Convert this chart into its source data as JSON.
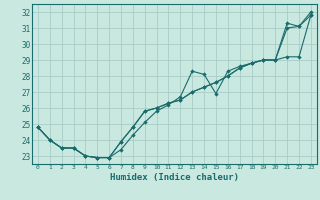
{
  "xlabel": "Humidex (Indice chaleur)",
  "bg_color": "#c8e8e0",
  "grid_color": "#a8ccc8",
  "line_color": "#1a6b6b",
  "xlim": [
    -0.5,
    23.5
  ],
  "ylim": [
    22.5,
    32.5
  ],
  "xticks": [
    0,
    1,
    2,
    3,
    4,
    5,
    6,
    7,
    8,
    9,
    10,
    11,
    12,
    13,
    14,
    15,
    16,
    17,
    18,
    19,
    20,
    21,
    22,
    23
  ],
  "yticks": [
    23,
    24,
    25,
    26,
    27,
    28,
    29,
    30,
    31,
    32
  ],
  "series1_x": [
    0,
    1,
    2,
    3,
    4,
    5,
    6,
    7,
    8,
    9,
    10,
    11,
    12,
    13,
    14,
    15,
    16,
    17,
    18,
    19,
    20,
    21,
    22,
    23
  ],
  "series1_y": [
    24.8,
    24.0,
    23.5,
    23.5,
    23.0,
    22.9,
    22.9,
    23.4,
    24.3,
    25.1,
    25.8,
    26.2,
    26.7,
    28.3,
    28.1,
    26.9,
    28.3,
    28.6,
    28.8,
    29.0,
    29.0,
    31.0,
    31.1,
    32.0
  ],
  "series2_x": [
    0,
    1,
    2,
    3,
    4,
    5,
    6,
    7,
    8,
    9,
    10,
    11,
    12,
    13,
    14,
    15,
    16,
    17,
    18,
    19,
    20,
    21,
    22,
    23
  ],
  "series2_y": [
    24.8,
    24.0,
    23.5,
    23.5,
    23.0,
    22.9,
    22.9,
    23.9,
    24.8,
    25.8,
    26.0,
    26.3,
    26.5,
    27.0,
    27.3,
    27.6,
    28.0,
    28.5,
    28.8,
    29.0,
    29.0,
    29.2,
    29.2,
    31.8
  ],
  "series3_x": [
    0,
    1,
    2,
    3,
    4,
    5,
    6,
    7,
    8,
    9,
    10,
    11,
    12,
    13,
    14,
    15,
    16,
    17,
    18,
    19,
    20,
    21,
    22,
    23
  ],
  "series3_y": [
    24.8,
    24.0,
    23.5,
    23.5,
    23.0,
    22.9,
    22.9,
    23.9,
    24.8,
    25.8,
    26.0,
    26.3,
    26.5,
    27.0,
    27.3,
    27.6,
    28.0,
    28.5,
    28.8,
    29.0,
    29.0,
    31.3,
    31.1,
    31.8
  ]
}
